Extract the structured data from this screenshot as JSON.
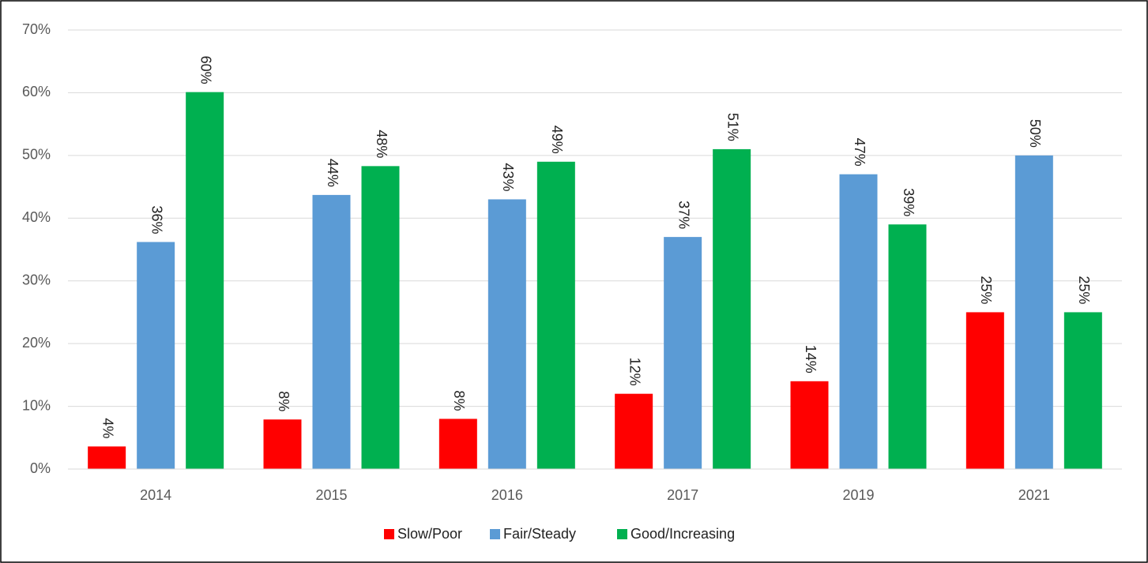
{
  "chart_data": {
    "type": "bar",
    "categories": [
      "2014",
      "2015",
      "2016",
      "2017",
      "2019",
      "2021"
    ],
    "series": [
      {
        "name": "Slow/Poor",
        "color": "#ff0000",
        "values": [
          3.6,
          7.9,
          8,
          12,
          14,
          25
        ],
        "value_labels": [
          "4%",
          "8%",
          "8%",
          "12%",
          "14%",
          "25%"
        ]
      },
      {
        "name": "Fair/Steady",
        "color": "#5b9bd5",
        "values": [
          36.2,
          43.7,
          43,
          37,
          47,
          50
        ],
        "value_labels": [
          "36%",
          "44%",
          "43%",
          "37%",
          "47%",
          "50%"
        ]
      },
      {
        "name": "Good/Increasing",
        "color": "#00b050",
        "values": [
          60.1,
          48.3,
          49,
          51,
          39,
          25
        ],
        "value_labels": [
          "60%",
          "48%",
          "49%",
          "51%",
          "39%",
          "25%"
        ]
      }
    ],
    "ylim": [
      0,
      70
    ],
    "yticks": [
      {
        "value": 0,
        "label": "0%"
      },
      {
        "value": 10,
        "label": "10%"
      },
      {
        "value": 20,
        "label": "20%"
      },
      {
        "value": 30,
        "label": "30%"
      },
      {
        "value": 40,
        "label": "40%"
      },
      {
        "value": 50,
        "label": "50%"
      },
      {
        "value": 60,
        "label": "60%"
      },
      {
        "value": 70,
        "label": "70%"
      }
    ],
    "grid": true,
    "legend": "bottom"
  }
}
